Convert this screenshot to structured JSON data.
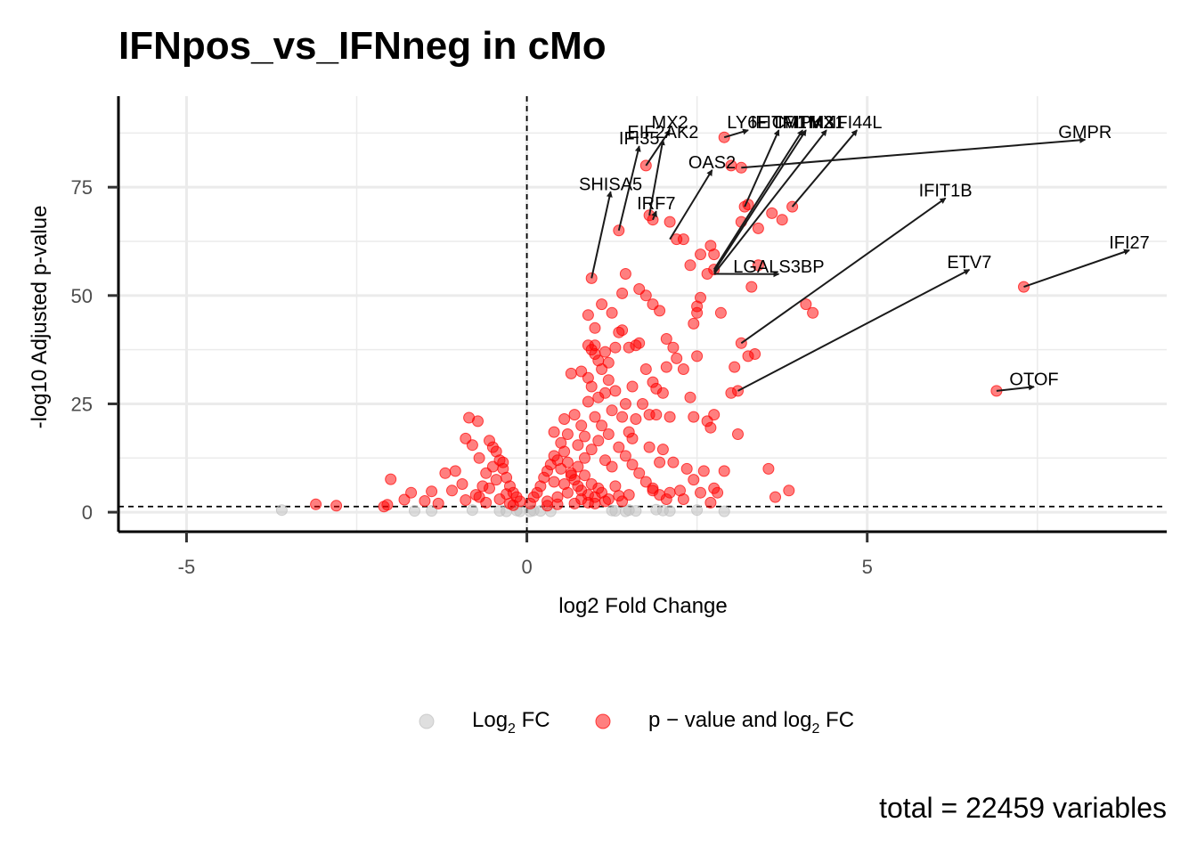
{
  "chart_data": {
    "type": "scatter",
    "title": "IFNpos_vs_IFNneg in cMo",
    "xlabel": "log2 Fold Change",
    "ylabel": "-log10 Adjusted p-value",
    "xlim": [
      -6,
      9.4
    ],
    "ylim": [
      -4.5,
      96
    ],
    "x_ticks": [
      -5,
      0,
      5
    ],
    "y_ticks": [
      0,
      25,
      50,
      75
    ],
    "grid": true,
    "legend_position": "bottom",
    "caption": "total = 22459 variables",
    "thresholds": {
      "log2fc": 0,
      "neg_log10_p": 1.3
    },
    "colors": {
      "significant": "#ff0000",
      "not_significant": "#bfbfbf",
      "axis": "#000000",
      "grid": "#ebebeb"
    },
    "legend": [
      {
        "key": "log2fc",
        "label_main": "Log",
        "label_sub": "2",
        "label_tail": " FC",
        "color": "#bfbfbf"
      },
      {
        "key": "pval_fc",
        "label_main": "p − value and log",
        "label_sub": "2",
        "label_tail": " FC",
        "color": "#ff0000"
      }
    ],
    "series": [
      {
        "key": "log2fc",
        "points": [
          [
            -3.6,
            0.5
          ],
          [
            -1.65,
            0.3
          ],
          [
            -1.4,
            0.3
          ],
          [
            -0.8,
            0.5
          ],
          [
            -0.4,
            0.3
          ],
          [
            -0.3,
            0.2
          ],
          [
            -0.15,
            0.4
          ],
          [
            -0.1,
            0.2
          ],
          [
            0.05,
            0.2
          ],
          [
            0.1,
            0.4
          ],
          [
            0.2,
            0.3
          ],
          [
            0.35,
            0.2
          ],
          [
            1.25,
            0.4
          ],
          [
            1.3,
            0.3
          ],
          [
            1.45,
            0.2
          ],
          [
            1.5,
            0.5
          ],
          [
            1.6,
            0.3
          ],
          [
            1.9,
            0.6
          ],
          [
            2.0,
            0.4
          ],
          [
            2.1,
            0.3
          ],
          [
            2.5,
            0.5
          ],
          [
            2.9,
            0.2
          ]
        ]
      },
      {
        "key": "pval_fc",
        "points": [
          [
            -3.1,
            1.8
          ],
          [
            -2.8,
            1.5
          ],
          [
            -2.0,
            7.6
          ],
          [
            -2.05,
            1.7
          ],
          [
            -2.1,
            1.3
          ],
          [
            -1.7,
            4.5
          ],
          [
            -1.8,
            2.9
          ],
          [
            -1.5,
            2.6
          ],
          [
            -1.4,
            4.8
          ],
          [
            -1.1,
            5.0
          ],
          [
            -1.2,
            9.0
          ],
          [
            -1.05,
            9.5
          ],
          [
            -0.85,
            21.8
          ],
          [
            -0.72,
            21.0
          ],
          [
            -0.9,
            17.0
          ],
          [
            -0.8,
            15.5
          ],
          [
            -0.7,
            12.5
          ],
          [
            -0.6,
            9.0
          ],
          [
            -0.55,
            16.5
          ],
          [
            -0.5,
            15.0
          ],
          [
            -0.45,
            14.0
          ],
          [
            -0.4,
            12.0
          ],
          [
            -0.35,
            10.0
          ],
          [
            -0.3,
            8.0
          ],
          [
            -0.25,
            6.0
          ],
          [
            -0.2,
            4.5
          ],
          [
            -0.15,
            3.5
          ],
          [
            -0.1,
            2.5
          ],
          [
            -0.9,
            2.8
          ],
          [
            -0.7,
            3.5
          ],
          [
            -0.6,
            2.2
          ],
          [
            -0.55,
            5.5
          ],
          [
            -0.4,
            3.0
          ],
          [
            -0.3,
            4.2
          ],
          [
            -0.45,
            7.5
          ],
          [
            -0.35,
            11.5
          ],
          [
            -0.5,
            10.5
          ],
          [
            -0.65,
            6.0
          ],
          [
            -0.75,
            4.0
          ],
          [
            -1.3,
            2.0
          ],
          [
            -0.95,
            6.5
          ],
          [
            -0.25,
            2.0
          ],
          [
            0.05,
            2.0
          ],
          [
            0.1,
            3.5
          ],
          [
            0.15,
            4.5
          ],
          [
            0.2,
            6.0
          ],
          [
            0.25,
            8.0
          ],
          [
            0.3,
            9.5
          ],
          [
            0.35,
            11.0
          ],
          [
            0.4,
            13.0
          ],
          [
            0.45,
            12.0
          ],
          [
            0.5,
            10.0
          ],
          [
            0.55,
            14.0
          ],
          [
            0.6,
            11.5
          ],
          [
            0.65,
            9.0
          ],
          [
            0.7,
            7.5
          ],
          [
            0.75,
            6.0
          ],
          [
            0.8,
            5.0
          ],
          [
            0.85,
            8.5
          ],
          [
            0.9,
            4.0
          ],
          [
            0.95,
            6.5
          ],
          [
            1.0,
            3.5
          ],
          [
            1.05,
            5.5
          ],
          [
            1.1,
            4.5
          ],
          [
            1.2,
            3.0
          ],
          [
            1.3,
            6.0
          ],
          [
            1.4,
            2.5
          ],
          [
            1.5,
            4.0
          ],
          [
            0.3,
            2.5
          ],
          [
            0.45,
            3.5
          ],
          [
            0.6,
            4.5
          ],
          [
            0.7,
            2.0
          ],
          [
            0.8,
            3.0
          ],
          [
            0.9,
            2.2
          ],
          [
            1.0,
            2.0
          ],
          [
            1.15,
            2.5
          ],
          [
            1.35,
            3.8
          ],
          [
            0.55,
            6.5
          ],
          [
            0.4,
            7.0
          ],
          [
            0.65,
            8.5
          ],
          [
            0.75,
            10.5
          ],
          [
            0.85,
            12.5
          ],
          [
            0.5,
            16.0
          ],
          [
            0.6,
            18.0
          ],
          [
            0.75,
            15.5
          ],
          [
            0.85,
            17.5
          ],
          [
            0.95,
            14.5
          ],
          [
            1.05,
            16.5
          ],
          [
            1.15,
            12.0
          ],
          [
            1.25,
            10.5
          ],
          [
            0.4,
            18.5
          ],
          [
            0.55,
            21.5
          ],
          [
            0.7,
            22.5
          ],
          [
            0.8,
            20.0
          ],
          [
            0.9,
            25.5
          ],
          [
            1.0,
            22.0
          ],
          [
            1.1,
            20.0
          ],
          [
            1.2,
            18.0
          ],
          [
            1.35,
            15.0
          ],
          [
            1.45,
            13.0
          ],
          [
            1.55,
            11.0
          ],
          [
            1.65,
            9.0
          ],
          [
            1.75,
            7.0
          ],
          [
            1.85,
            5.5
          ],
          [
            1.95,
            4.0
          ],
          [
            2.05,
            3.0
          ],
          [
            0.95,
            29.0
          ],
          [
            1.05,
            26.5
          ],
          [
            1.15,
            27.5
          ],
          [
            1.25,
            23.5
          ],
          [
            1.4,
            22.0
          ],
          [
            1.5,
            18.5
          ],
          [
            0.65,
            32.0
          ],
          [
            0.8,
            32.5
          ],
          [
            0.9,
            31.0
          ],
          [
            1.0,
            36.5
          ],
          [
            1.1,
            33.0
          ],
          [
            1.2,
            30.5
          ],
          [
            1.3,
            28.0
          ],
          [
            1.45,
            25.0
          ],
          [
            0.9,
            38.5
          ],
          [
            0.95,
            37.5
          ],
          [
            1.0,
            38.5
          ],
          [
            1.05,
            35.0
          ],
          [
            1.15,
            37.0
          ],
          [
            1.2,
            34.5
          ],
          [
            1.3,
            38.0
          ],
          [
            1.35,
            41.5
          ],
          [
            1.4,
            42.0
          ],
          [
            1.5,
            38.0
          ],
          [
            1.6,
            38.5
          ],
          [
            1.65,
            39.0
          ],
          [
            1.75,
            33.0
          ],
          [
            1.85,
            30.0
          ],
          [
            1.9,
            28.5
          ],
          [
            2.0,
            27.5
          ],
          [
            1.55,
            29.0
          ],
          [
            1.7,
            25.0
          ],
          [
            1.8,
            22.5
          ],
          [
            0.9,
            45.5
          ],
          [
            1.0,
            42.5
          ],
          [
            1.1,
            48.0
          ],
          [
            1.25,
            46.0
          ],
          [
            1.4,
            50.5
          ],
          [
            1.45,
            55.0
          ],
          [
            1.65,
            51.5
          ],
          [
            1.75,
            50.0
          ],
          [
            1.85,
            48.0
          ],
          [
            1.95,
            46.5
          ],
          [
            2.05,
            40.0
          ],
          [
            2.15,
            38.0
          ],
          [
            2.05,
            33.5
          ],
          [
            2.2,
            35.5
          ],
          [
            2.3,
            33.0
          ],
          [
            2.4,
            26.5
          ],
          [
            2.45,
            22.0
          ],
          [
            1.6,
            21.5
          ],
          [
            1.9,
            22.5
          ],
          [
            2.1,
            22.0
          ],
          [
            1.55,
            17.0
          ],
          [
            1.8,
            15.0
          ],
          [
            2.0,
            14.5
          ],
          [
            2.15,
            11.5
          ],
          [
            1.95,
            11.5
          ],
          [
            2.35,
            10.0
          ],
          [
            2.45,
            7.5
          ],
          [
            1.85,
            5.0
          ],
          [
            2.1,
            4.5
          ],
          [
            2.25,
            5.0
          ],
          [
            2.3,
            3.0
          ],
          [
            2.55,
            4.5
          ],
          [
            2.6,
            9.5
          ],
          [
            2.7,
            2.2
          ],
          [
            2.75,
            5.5
          ],
          [
            2.8,
            4.5
          ],
          [
            2.9,
            9.5
          ],
          [
            2.65,
            21.0
          ],
          [
            2.7,
            19.5
          ],
          [
            2.75,
            22.5
          ],
          [
            2.5,
            36.0
          ],
          [
            2.45,
            43.5
          ],
          [
            2.5,
            46.0
          ],
          [
            2.5,
            47.5
          ],
          [
            2.55,
            49.5
          ],
          [
            2.85,
            46.0
          ],
          [
            2.65,
            55.0
          ],
          [
            3.05,
            33.5
          ],
          [
            3.25,
            36.0
          ],
          [
            3.1,
            18.0
          ],
          [
            3.0,
            27.5
          ],
          [
            3.3,
            52.0
          ],
          [
            3.4,
            57.0
          ],
          [
            3.55,
            10.0
          ],
          [
            3.65,
            3.5
          ],
          [
            3.85,
            5.0
          ],
          [
            3.15,
            67.0
          ],
          [
            3.2,
            70.5
          ],
          [
            3.4,
            65.5
          ],
          [
            3.6,
            69.0
          ],
          [
            3.75,
            67.5
          ],
          [
            3.9,
            70.5
          ],
          [
            4.1,
            48.0
          ],
          [
            4.2,
            46.0
          ],
          [
            2.7,
            61.5
          ],
          [
            2.75,
            59.5
          ],
          [
            2.55,
            59.5
          ],
          [
            2.4,
            57.0
          ],
          [
            2.3,
            63.0
          ],
          [
            2.2,
            63.0
          ],
          [
            2.1,
            67.0
          ],
          [
            1.85,
            67.5
          ],
          [
            1.8,
            68.5
          ],
          [
            1.75,
            80.0
          ],
          [
            1.35,
            65.0
          ],
          [
            0.95,
            54.0
          ],
          [
            2.9,
            86.5
          ],
          [
            3.0,
            80.0
          ],
          [
            3.15,
            79.5
          ],
          [
            2.75,
            56.0
          ],
          [
            3.15,
            39.0
          ],
          [
            3.35,
            36.5
          ],
          [
            3.1,
            28.0
          ],
          [
            3.25,
            71.0
          ],
          [
            7.3,
            52.0
          ],
          [
            6.9,
            28.0
          ],
          [
            0.3,
            1.5
          ],
          [
            0.45,
            1.8
          ],
          [
            -0.2,
            1.6
          ]
        ]
      }
    ],
    "annotations": [
      {
        "label": "MX2",
        "point": [
          1.75,
          80.0
        ],
        "text_at": [
          2.1,
          90.2
        ]
      },
      {
        "label": "EIF2AK2",
        "point": [
          1.8,
          68.5
        ],
        "text_at": [
          2.0,
          88.0
        ]
      },
      {
        "label": "IFI35",
        "point": [
          1.35,
          65.0
        ],
        "text_at": [
          1.65,
          86.5
        ]
      },
      {
        "label": "LY6E",
        "point": [
          2.9,
          86.5
        ],
        "text_at": [
          3.25,
          90.2
        ]
      },
      {
        "label": "IFITM1",
        "point": [
          3.2,
          70.5
        ],
        "text_at": [
          3.7,
          90.2
        ]
      },
      {
        "label": "CMPK2",
        "point": [
          2.75,
          56.0
        ],
        "text_at": [
          4.05,
          90.2
        ]
      },
      {
        "label": "IFITM3",
        "point": [
          2.75,
          55.5
        ],
        "text_at": [
          4.1,
          90.2
        ]
      },
      {
        "label": "MX1",
        "point": [
          2.75,
          55.0
        ],
        "text_at": [
          4.4,
          90.2
        ]
      },
      {
        "label": "IFI44L",
        "point": [
          3.9,
          70.5
        ],
        "text_at": [
          4.85,
          90.2
        ]
      },
      {
        "label": "OAS2",
        "point": [
          2.1,
          63.0
        ],
        "text_at": [
          2.72,
          81.0
        ]
      },
      {
        "label": "SHISA5",
        "point": [
          0.95,
          54.0
        ],
        "text_at": [
          1.23,
          76.0
        ]
      },
      {
        "label": "IRF7",
        "point": [
          1.85,
          67.5
        ],
        "text_at": [
          1.9,
          71.5
        ]
      },
      {
        "label": "GMPR",
        "point": [
          3.15,
          79.5
        ],
        "text_at": [
          8.2,
          88.0
        ]
      },
      {
        "label": "IFIT1B",
        "point": [
          3.15,
          39.0
        ],
        "text_at": [
          6.15,
          74.5
        ]
      },
      {
        "label": "IFI27",
        "point": [
          7.3,
          52.0
        ],
        "text_at": [
          8.85,
          62.5
        ]
      },
      {
        "label": "ETV7",
        "point": [
          3.1,
          28.0
        ],
        "text_at": [
          6.5,
          58.0
        ]
      },
      {
        "label": "LGALS3BP",
        "point": [
          2.75,
          55.0
        ],
        "text_at": [
          3.7,
          57.0
        ]
      },
      {
        "label": "OTOF",
        "point": [
          6.9,
          28.0
        ],
        "text_at": [
          7.45,
          31.0
        ]
      }
    ]
  }
}
